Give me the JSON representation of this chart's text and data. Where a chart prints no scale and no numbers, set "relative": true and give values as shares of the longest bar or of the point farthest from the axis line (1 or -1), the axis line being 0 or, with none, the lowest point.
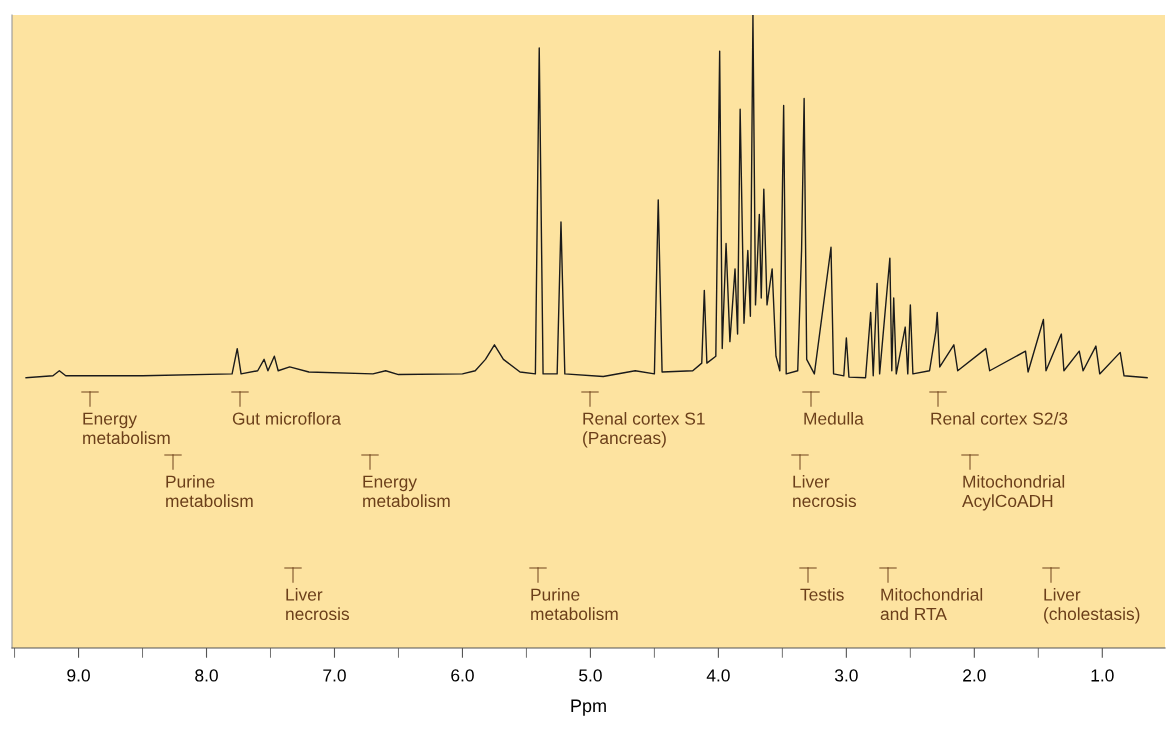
{
  "chart_data": {
    "type": "line",
    "relative": true,
    "xlabel": "Ppm",
    "xlim": [
      9.52,
      0.51
    ],
    "xticks": [
      {
        "value": 9.5,
        "label": null
      },
      {
        "value": 9.0,
        "label": "9.0"
      },
      {
        "value": 8.5,
        "label": null
      },
      {
        "value": 8.0,
        "label": "8.0"
      },
      {
        "value": 7.5,
        "label": null
      },
      {
        "value": 7.0,
        "label": "7.0"
      },
      {
        "value": 6.5,
        "label": null
      },
      {
        "value": 6.0,
        "label": "6.0"
      },
      {
        "value": 5.5,
        "label": null
      },
      {
        "value": 5.0,
        "label": "5.0"
      },
      {
        "value": 4.5,
        "label": null
      },
      {
        "value": 4.0,
        "label": "4.0"
      },
      {
        "value": 3.5,
        "label": null
      },
      {
        "value": 3.0,
        "label": "3.0"
      },
      {
        "value": 2.5,
        "label": null
      },
      {
        "value": 2.0,
        "label": "2.0"
      },
      {
        "value": 1.5,
        "label": null
      },
      {
        "value": 1.0,
        "label": "1.0"
      }
    ],
    "grid": false,
    "legend": false,
    "marker": "none",
    "line_style": "solid",
    "series": [
      {
        "color": "#1a1a1a",
        "x": [
          9.41,
          9.2,
          9.15,
          9.1,
          8.5,
          7.8,
          7.76,
          7.73,
          7.6,
          7.55,
          7.52,
          7.47,
          7.44,
          7.35,
          7.2,
          6.7,
          6.6,
          6.5,
          6.0,
          5.9,
          5.82,
          5.75,
          5.68,
          5.55,
          5.43,
          5.4,
          5.37,
          5.26,
          5.23,
          5.2,
          4.9,
          4.65,
          4.5,
          4.47,
          4.44,
          4.2,
          4.13,
          4.11,
          4.09,
          4.02,
          3.99,
          3.97,
          3.94,
          3.91,
          3.87,
          3.85,
          3.83,
          3.8,
          3.77,
          3.75,
          3.73,
          3.71,
          3.68,
          3.665,
          3.645,
          3.62,
          3.58,
          3.55,
          3.52,
          3.49,
          3.47,
          3.38,
          3.35,
          3.33,
          3.31,
          3.25,
          3.12,
          3.1,
          3.02,
          3.0,
          2.98,
          2.85,
          2.81,
          2.79,
          2.76,
          2.74,
          2.66,
          2.645,
          2.63,
          2.61,
          2.54,
          2.52,
          2.5,
          2.48,
          2.35,
          2.3,
          2.29,
          2.27,
          2.16,
          2.13,
          1.91,
          1.88,
          1.6,
          1.58,
          1.46,
          1.44,
          1.32,
          1.3,
          1.18,
          1.15,
          1.05,
          1.02,
          0.86,
          0.83,
          0.65
        ],
        "values": [
          0.427,
          0.43,
          0.438,
          0.43,
          0.43,
          0.433,
          0.473,
          0.433,
          0.438,
          0.456,
          0.438,
          0.461,
          0.438,
          0.444,
          0.436,
          0.433,
          0.438,
          0.432,
          0.433,
          0.438,
          0.456,
          0.479,
          0.456,
          0.436,
          0.433,
          0.948,
          0.433,
          0.433,
          0.673,
          0.433,
          0.429,
          0.438,
          0.433,
          0.708,
          0.436,
          0.438,
          0.45,
          0.565,
          0.45,
          0.461,
          0.943,
          0.473,
          0.639,
          0.484,
          0.599,
          0.496,
          0.851,
          0.513,
          0.628,
          0.524,
          1.0,
          0.542,
          0.685,
          0.553,
          0.725,
          0.542,
          0.599,
          0.461,
          0.438,
          0.857,
          0.433,
          0.438,
          0.628,
          0.868,
          0.456,
          0.433,
          0.633,
          0.433,
          0.43,
          0.49,
          0.428,
          0.427,
          0.53,
          0.43,
          0.576,
          0.433,
          0.616,
          0.438,
          0.553,
          0.433,
          0.507,
          0.433,
          0.542,
          0.433,
          0.438,
          0.501,
          0.53,
          0.444,
          0.479,
          0.438,
          0.473,
          0.438,
          0.469,
          0.436,
          0.519,
          0.438,
          0.496,
          0.438,
          0.469,
          0.438,
          0.477,
          0.433,
          0.467,
          0.43,
          0.427
        ]
      }
    ],
    "annotations": [
      "Energy\nmetabolism",
      "Gut microflora",
      "Renal cortex S1\n(Pancreas)",
      "Medulla",
      "Renal cortex S2/3",
      "Purine\nmetabolism",
      "Energy\nmetabolism",
      "Liver\nnecrosis",
      "Mitochondrial\nAcylCoADH",
      "Liver\nnecrosis",
      "Purine\nmetabolism",
      "Testis",
      "Mitochondrial\nand RTA",
      "Liver\n(cholestasis)"
    ]
  }
}
